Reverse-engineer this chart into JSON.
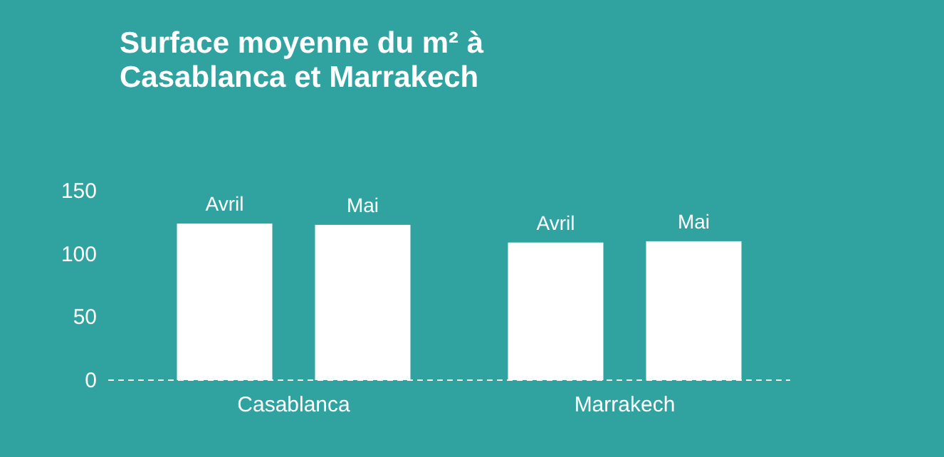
{
  "chart_data": {
    "type": "bar",
    "title": "Surface moyenne du m² à Casablanca et Marrakech",
    "categories": [
      "Casablanca",
      "Marrakech"
    ],
    "series": [
      {
        "name": "Avril",
        "color": "#ffffff",
        "values": [
          124,
          109
        ]
      },
      {
        "name": "Mai",
        "color": "#ffffff",
        "values": [
          123,
          110
        ]
      }
    ],
    "ylim": [
      0,
      150
    ],
    "yticks": [
      0,
      50,
      100,
      150
    ],
    "grid": false
  }
}
